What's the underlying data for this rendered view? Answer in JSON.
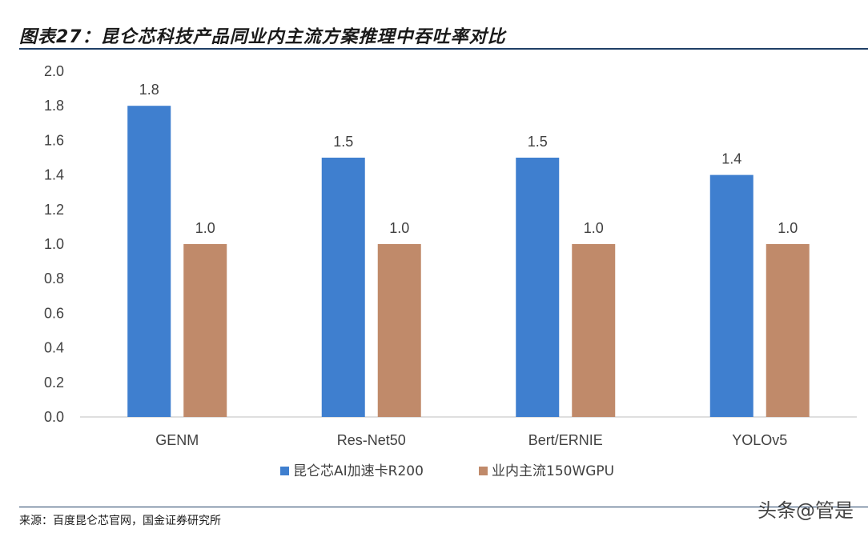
{
  "title": "图表27：昆仑芯科技产品同业内主流方案推理中吞吐率对比",
  "source": "来源：百度昆仑芯官网，国金证券研究所",
  "watermark": "头条@管是",
  "chart_data": {
    "type": "bar",
    "categories": [
      "GENM",
      "Res-Net50",
      "Bert/ERNIE",
      "YOLOv5"
    ],
    "series": [
      {
        "name": "昆仑芯AI加速卡R200",
        "values": [
          1.8,
          1.5,
          1.5,
          1.4
        ],
        "color": "#3f7fcf"
      },
      {
        "name": "业内主流150WGPU",
        "values": [
          1.0,
          1.0,
          1.0,
          1.0
        ],
        "color": "#c08a6a"
      }
    ],
    "data_labels": [
      [
        "1.8",
        "1.5",
        "1.5",
        "1.4"
      ],
      [
        "1.0",
        "1.0",
        "1.0",
        "1.0"
      ]
    ],
    "yticks": [
      "0.0",
      "0.2",
      "0.4",
      "0.6",
      "0.8",
      "1.0",
      "1.2",
      "1.4",
      "1.6",
      "1.8",
      "2.0"
    ],
    "ylim": [
      0,
      2.0
    ],
    "grid": false,
    "legend_position": "bottom-center"
  }
}
